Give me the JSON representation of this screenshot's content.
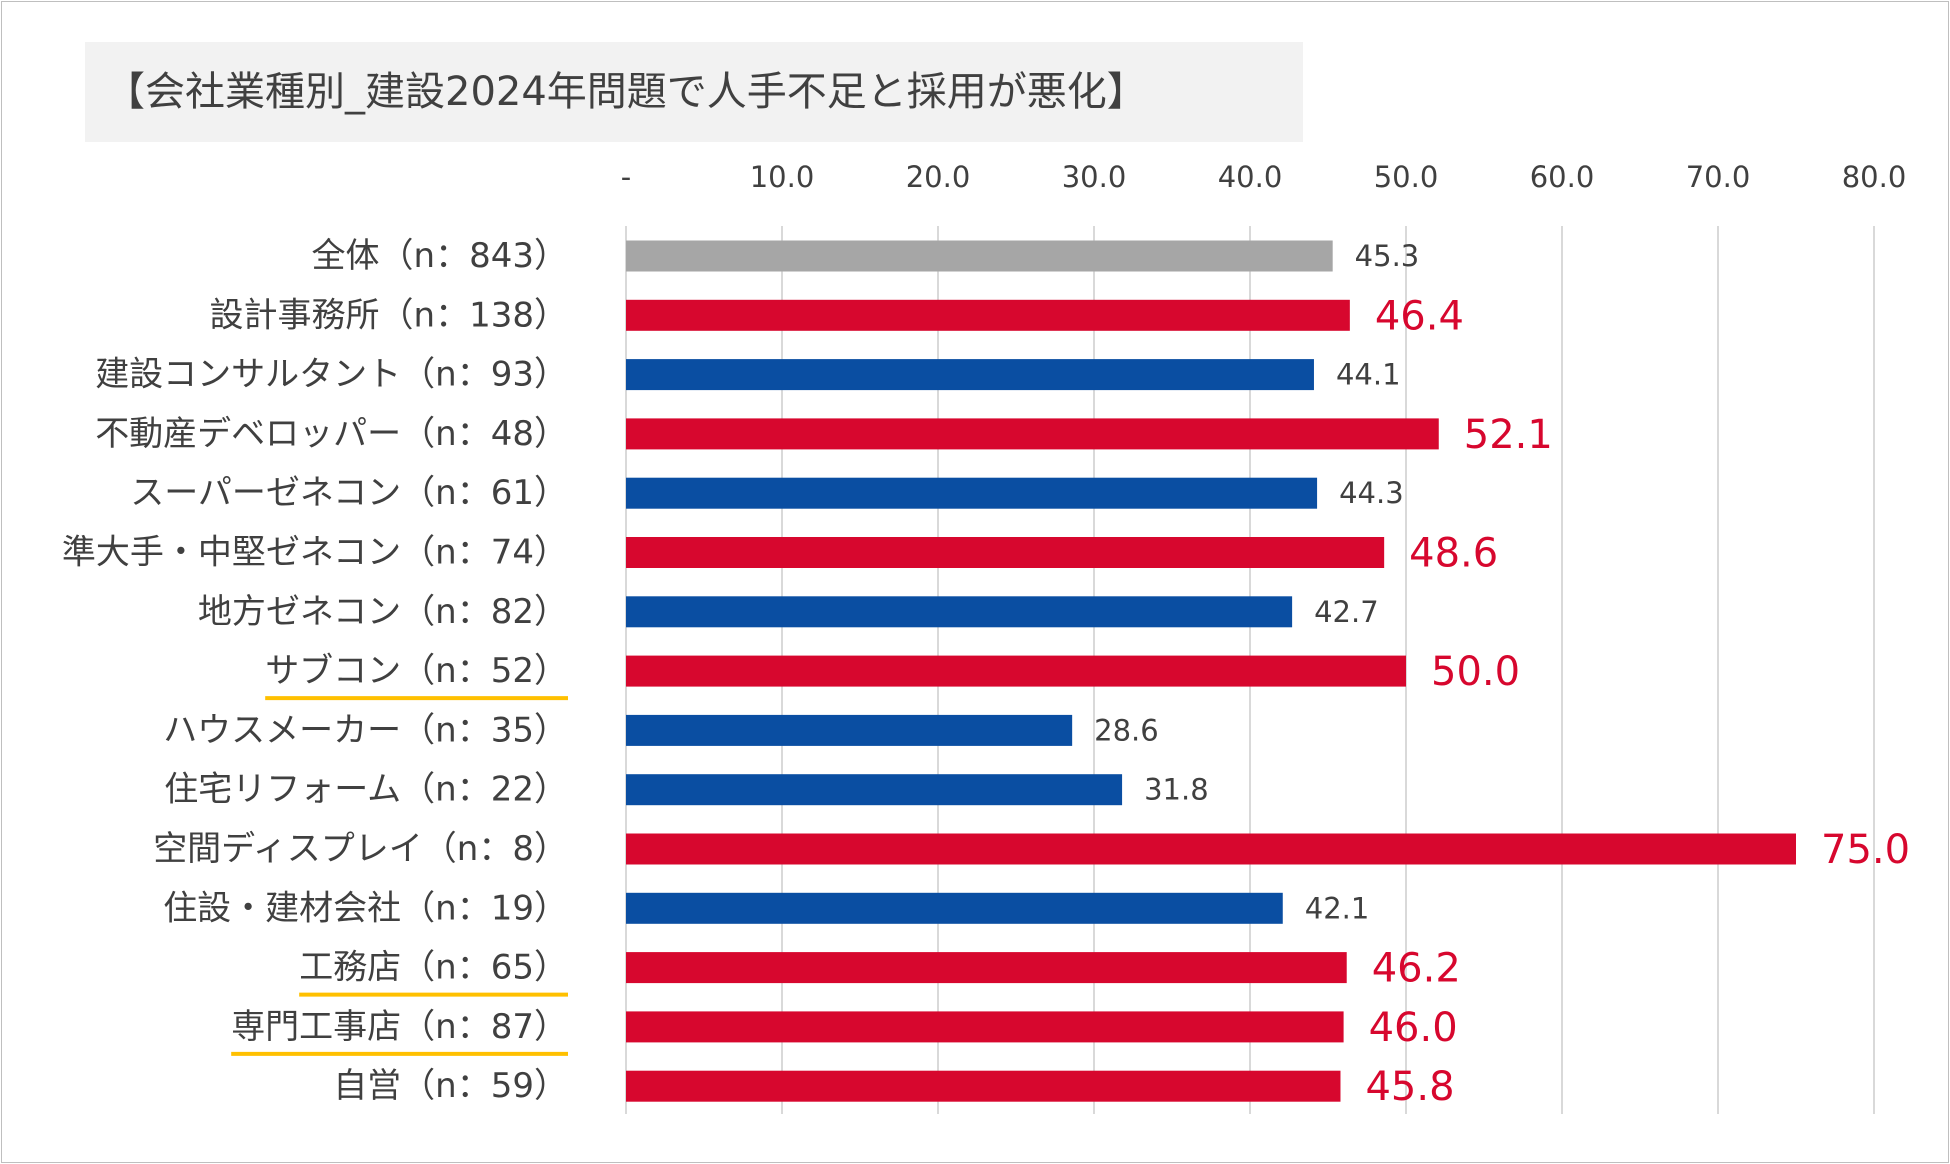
{
  "chart_data": {
    "type": "bar",
    "orientation": "horizontal",
    "title": "【会社業種別_建設2024年問題で人手不足と採用が悪化】",
    "xlim": [
      0,
      80
    ],
    "x_ticks": [
      0,
      10,
      20,
      30,
      40,
      50,
      60,
      70,
      80
    ],
    "x_tick_labels": [
      "-",
      "10.0",
      "20.0",
      "30.0",
      "40.0",
      "50.0",
      "60.0",
      "70.0",
      "80.0"
    ],
    "x_axis_position": "top",
    "grid": "vertical",
    "categories": [
      "全体（n：843）",
      "設計事務所（n：138）",
      "建設コンサルタント（n：93）",
      "不動産デベロッパー（n：48）",
      "スーパーゼネコン（n：61）",
      "準大手・中堅ゼネコン（n：74）",
      "地方ゼネコン（n：82）",
      "サブコン（n：52）",
      "ハウスメーカー（n：35）",
      "住宅リフォーム（n：22）",
      "空間ディスプレイ（n：8）",
      "住設・建材会社（n：19）",
      "工務店（n：65）",
      "専門工事店（n：87）",
      "自営（n：59）"
    ],
    "values": [
      45.3,
      46.4,
      44.1,
      52.1,
      44.3,
      48.6,
      42.7,
      50.0,
      28.6,
      31.8,
      75.0,
      42.1,
      46.2,
      46.0,
      45.8
    ],
    "value_labels": [
      "45.3",
      "46.4",
      "44.1",
      "52.1",
      "44.3",
      "48.6",
      "42.7",
      "50.0",
      "28.6",
      "31.8",
      "75.0",
      "42.1",
      "46.2",
      "46.0",
      "45.8"
    ],
    "bar_color_keys": [
      "total",
      "above",
      "below",
      "above",
      "below",
      "above",
      "below",
      "above",
      "below",
      "below",
      "above",
      "below",
      "above",
      "above",
      "above"
    ],
    "underlined_categories": [
      7,
      12,
      13
    ],
    "colors": {
      "total": "#a6a6a6",
      "above": "#d7072e",
      "below": "#0a4ea2",
      "underline": "#ffc000",
      "grid": "#d9d9d9",
      "text": "#404040"
    }
  }
}
